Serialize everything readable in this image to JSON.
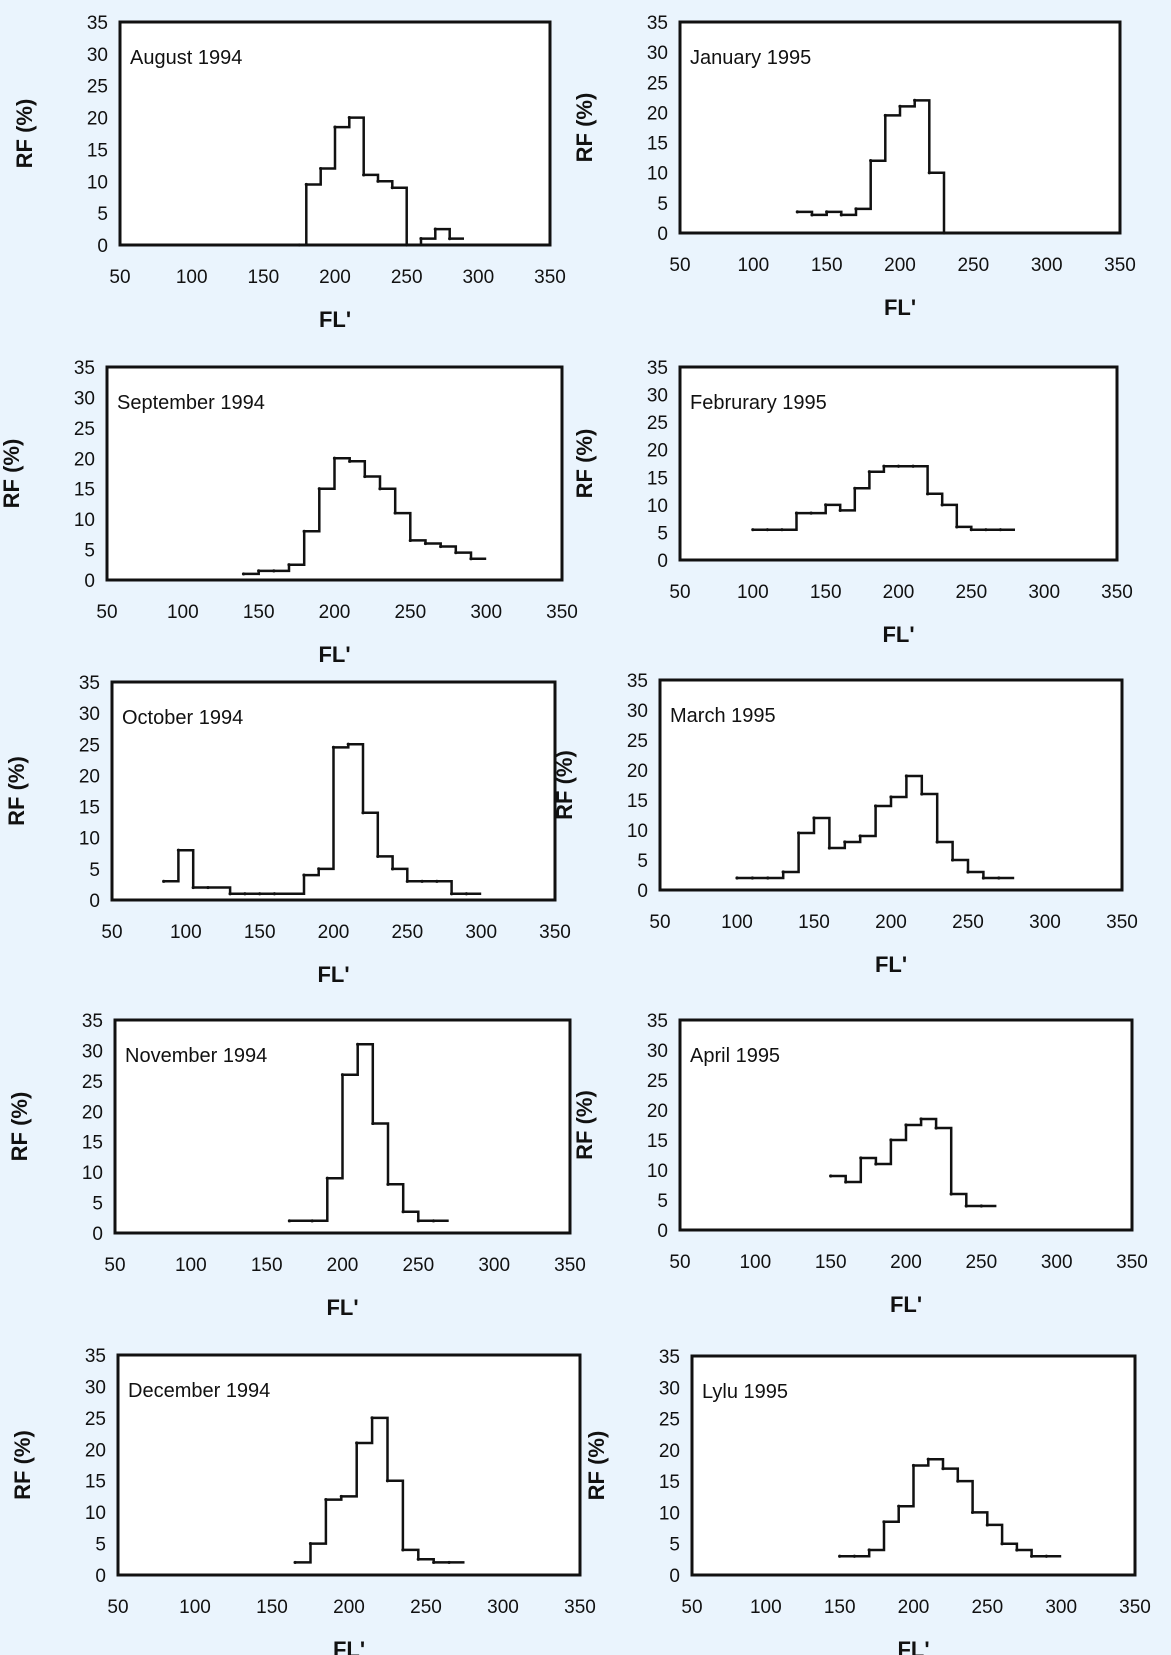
{
  "chart_data": [
    {
      "type": "line",
      "title": "August 1994",
      "xlabel": "FL'",
      "ylabel": "RF (%)",
      "xlim": [
        50,
        350
      ],
      "ylim": [
        0,
        35
      ],
      "xticks": [
        "50",
        "100",
        "150",
        "200",
        "250",
        "300",
        "350"
      ],
      "yticks": [
        "0",
        "5",
        "10",
        "15",
        "20",
        "25",
        "30",
        "35"
      ],
      "x": [
        175,
        180,
        190,
        200,
        210,
        220,
        230,
        240,
        250,
        260,
        270,
        280
      ],
      "values": [
        0,
        9.5,
        12,
        18.5,
        20,
        11,
        10,
        9,
        0,
        1,
        2.5,
        1
      ]
    },
    {
      "type": "line",
      "title": "January 1995",
      "xlabel": "FL'",
      "ylabel": "RF (%)",
      "xlim": [
        50,
        350
      ],
      "ylim": [
        0,
        35
      ],
      "xticks": [
        "50",
        "100",
        "150",
        "200",
        "250",
        "300",
        "350"
      ],
      "yticks": [
        "0",
        "5",
        "10",
        "15",
        "20",
        "25",
        "30",
        "35"
      ],
      "x": [
        130,
        140,
        150,
        160,
        170,
        180,
        190,
        200,
        210,
        220,
        230
      ],
      "values": [
        3.5,
        3,
        3.5,
        3,
        4,
        12,
        19.5,
        21,
        22,
        10,
        0
      ]
    },
    {
      "type": "line",
      "title": "September 1994",
      "xlabel": "FL'",
      "ylabel": "RF (%)",
      "xlim": [
        50,
        350
      ],
      "ylim": [
        0,
        35
      ],
      "xticks": [
        "50",
        "100",
        "150",
        "200",
        "250",
        "300",
        "350"
      ],
      "yticks": [
        "0",
        "5",
        "10",
        "15",
        "20",
        "25",
        "30",
        "35"
      ],
      "x": [
        140,
        150,
        160,
        170,
        180,
        190,
        200,
        210,
        220,
        230,
        240,
        250,
        260,
        270,
        280,
        290
      ],
      "values": [
        1,
        1.5,
        1.5,
        2.5,
        8,
        15,
        20,
        19.5,
        17,
        15,
        11,
        6.5,
        6,
        5.5,
        4.5,
        3.5
      ]
    },
    {
      "type": "line",
      "title": "Februrary 1995",
      "xlabel": "FL'",
      "ylabel": "RF (%)",
      "xlim": [
        50,
        350
      ],
      "ylim": [
        0,
        35
      ],
      "xticks": [
        "50",
        "100",
        "150",
        "200",
        "250",
        "300",
        "350"
      ],
      "yticks": [
        "0",
        "5",
        "10",
        "15",
        "20",
        "25",
        "30",
        "35"
      ],
      "x": [
        100,
        110,
        120,
        130,
        140,
        150,
        160,
        170,
        180,
        190,
        200,
        210,
        220,
        230,
        240,
        250,
        260,
        270
      ],
      "values": [
        5.5,
        5.5,
        5.5,
        8.5,
        8.5,
        10,
        9,
        13,
        16,
        17,
        17,
        17,
        12,
        10,
        6,
        5.5,
        5.5,
        5.5
      ]
    },
    {
      "type": "line",
      "title": "October 1994",
      "xlabel": "FL'",
      "ylabel": "RF (%)",
      "xlim": [
        50,
        350
      ],
      "ylim": [
        0,
        35
      ],
      "xticks": [
        "50",
        "100",
        "150",
        "200",
        "250",
        "300",
        "350"
      ],
      "yticks": [
        "0",
        "5",
        "10",
        "15",
        "20",
        "25",
        "30",
        "35"
      ],
      "x": [
        85,
        95,
        105,
        115,
        130,
        140,
        150,
        160,
        180,
        190,
        200,
        210,
        220,
        230,
        240,
        250,
        260,
        270,
        280,
        290
      ],
      "values": [
        3,
        8,
        2,
        2,
        1,
        1,
        1,
        1,
        4,
        5,
        24.5,
        25,
        14,
        7,
        5,
        3,
        3,
        3,
        1,
        1
      ]
    },
    {
      "type": "line",
      "title": "March 1995",
      "xlabel": "FL'",
      "ylabel": "RF (%)",
      "xlim": [
        50,
        350
      ],
      "ylim": [
        0,
        35
      ],
      "xticks": [
        "50",
        "100",
        "150",
        "200",
        "250",
        "300",
        "350"
      ],
      "yticks": [
        "0",
        "5",
        "10",
        "15",
        "20",
        "25",
        "30",
        "35"
      ],
      "x": [
        100,
        110,
        120,
        130,
        140,
        150,
        160,
        170,
        180,
        190,
        200,
        210,
        220,
        230,
        240,
        250,
        260,
        270
      ],
      "values": [
        2,
        2,
        2,
        3,
        9.5,
        12,
        7,
        8,
        9,
        14,
        15.5,
        19,
        16,
        8,
        5,
        3,
        2,
        2
      ]
    },
    {
      "type": "line",
      "title": "November 1994",
      "xlabel": "FL'",
      "ylabel": "RF (%)",
      "xlim": [
        50,
        350
      ],
      "ylim": [
        0,
        35
      ],
      "xticks": [
        "50",
        "100",
        "150",
        "200",
        "250",
        "300",
        "350"
      ],
      "yticks": [
        "0",
        "5",
        "10",
        "15",
        "20",
        "25",
        "30",
        "35"
      ],
      "x": [
        165,
        180,
        190,
        200,
        210,
        220,
        230,
        240,
        250,
        260
      ],
      "values": [
        2,
        2,
        9,
        26,
        31,
        18,
        8,
        3.5,
        2,
        2
      ]
    },
    {
      "type": "line",
      "title": "April 1995",
      "xlabel": "FL'",
      "ylabel": "RF (%)",
      "xlim": [
        50,
        350
      ],
      "ylim": [
        0,
        35
      ],
      "xticks": [
        "50",
        "100",
        "150",
        "200",
        "250",
        "300",
        "350"
      ],
      "yticks": [
        "0",
        "5",
        "10",
        "15",
        "20",
        "25",
        "30",
        "35"
      ],
      "x": [
        150,
        160,
        170,
        180,
        190,
        200,
        210,
        220,
        230,
        240,
        250
      ],
      "values": [
        9,
        8,
        12,
        11,
        15,
        17.5,
        18.5,
        17,
        6,
        4,
        4
      ]
    },
    {
      "type": "line",
      "title": "December 1994",
      "xlabel": "FL'",
      "ylabel": "RF (%)",
      "xlim": [
        50,
        350
      ],
      "ylim": [
        0,
        35
      ],
      "xticks": [
        "50",
        "100",
        "150",
        "200",
        "250",
        "300",
        "350"
      ],
      "yticks": [
        "0",
        "5",
        "10",
        "15",
        "20",
        "25",
        "30",
        "35"
      ],
      "x": [
        165,
        175,
        185,
        195,
        205,
        215,
        225,
        235,
        245,
        255,
        265
      ],
      "values": [
        2,
        5,
        12,
        12.5,
        21,
        25,
        15,
        4,
        2.5,
        2,
        2
      ]
    },
    {
      "type": "line",
      "title": "Lylu 1995",
      "xlabel": "FL'",
      "ylabel": "RF (%)",
      "xlim": [
        50,
        350
      ],
      "ylim": [
        0,
        35
      ],
      "xticks": [
        "50",
        "100",
        "150",
        "200",
        "250",
        "300",
        "350"
      ],
      "yticks": [
        "0",
        "5",
        "10",
        "15",
        "20",
        "25",
        "30",
        "35"
      ],
      "x": [
        150,
        160,
        170,
        180,
        190,
        200,
        210,
        220,
        230,
        240,
        250,
        260,
        270,
        280,
        290
      ],
      "values": [
        3,
        3,
        4,
        8.5,
        11,
        17.5,
        18.5,
        17,
        15,
        10,
        8,
        5,
        4,
        3,
        3
      ]
    }
  ]
}
